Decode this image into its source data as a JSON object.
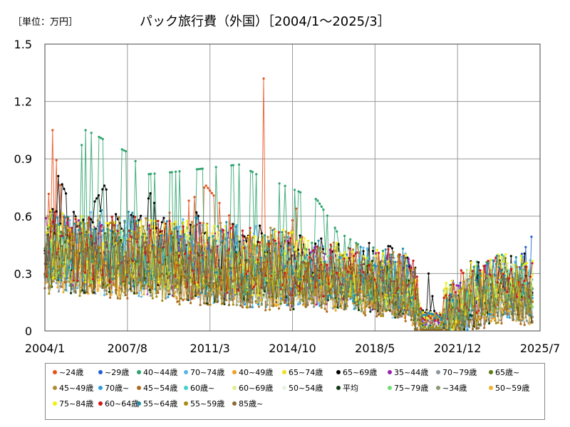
{
  "chart_data": {
    "type": "line",
    "title": "パック旅行費（外国）［2004/1～2025/3］",
    "unit_label": "［単位：万円］",
    "ylim": [
      0,
      1.5
    ],
    "yticks": [
      "0",
      "0.3",
      "0.6",
      "0.9",
      "1.2",
      "1.5"
    ],
    "ytick_values": [
      0,
      0.3,
      0.6,
      0.9,
      1.2,
      1.5
    ],
    "x_range": [
      "2004/1",
      "2025/7"
    ],
    "xticks": [
      "2004/1",
      "2007/8",
      "2011/3",
      "2014/10",
      "2018/5",
      "2021/12",
      "2025/7"
    ],
    "xtick_values": [
      2004.0,
      2007.583,
      2011.167,
      2014.75,
      2018.333,
      2021.917,
      2025.5
    ],
    "grid": true,
    "legend_position": "bottom",
    "series": [
      {
        "name": "~24歳",
        "color": "#e8511a"
      },
      {
        "name": "~29歳",
        "color": "#1f5fd6"
      },
      {
        "name": "40~44歳",
        "color": "#2ca36b"
      },
      {
        "name": "70~74歳",
        "color": "#5ab4e8"
      },
      {
        "name": "40~49歳",
        "color": "#f0a020"
      },
      {
        "name": "65~74歳",
        "color": "#f0e020"
      },
      {
        "name": "65~69歳",
        "color": "#000000"
      },
      {
        "name": "35~44歳",
        "color": "#9b1fb0"
      },
      {
        "name": "70~79歳",
        "color": "#8a949c"
      },
      {
        "name": "65歳~",
        "color": "#5a7a10"
      },
      {
        "name": "45~49歳",
        "color": "#b08a30"
      },
      {
        "name": "70歳~",
        "color": "#2aa0e0"
      },
      {
        "name": "45~54歳",
        "color": "#b06a20"
      },
      {
        "name": "60歳~",
        "color": "#40d0d0"
      },
      {
        "name": "60~69歳",
        "color": "#e0f090"
      },
      {
        "name": "50~54歳",
        "color": "#e8f4e0"
      },
      {
        "name": "平均",
        "color": "#103a10"
      },
      {
        "name": "75~79歳",
        "color": "#70e070"
      },
      {
        "name": "~34歳",
        "color": "#8a9a70"
      },
      {
        "name": "50~59歳",
        "color": "#f0b030"
      },
      {
        "name": "75~84歳",
        "color": "#f0f010"
      },
      {
        "name": "60~64歳",
        "color": "#d01818"
      },
      {
        "name": "55~64歳",
        "color": "#2090a8"
      },
      {
        "name": "55~59歳",
        "color": "#a88a10"
      },
      {
        "name": "85歳~",
        "color": "#8a6a30"
      }
    ],
    "key_points": [
      {
        "series": "65~69歳",
        "points": [
          [
            2004.0,
            0.42
          ],
          [
            2004.6,
            0.81
          ],
          [
            2005.5,
            0.55
          ],
          [
            2006.6,
            0.76
          ],
          [
            2007.6,
            0.45
          ],
          [
            2008.6,
            0.72
          ],
          [
            2009.6,
            0.38
          ],
          [
            2010.6,
            0.62
          ],
          [
            2011.6,
            0.32
          ],
          [
            2012.6,
            0.5
          ],
          [
            2013.6,
            0.41
          ],
          [
            2014.6,
            0.46
          ],
          [
            2015.6,
            0.37
          ],
          [
            2016.6,
            0.33
          ],
          [
            2017.6,
            0.3
          ],
          [
            2018.6,
            0.31
          ],
          [
            2019.6,
            0.33
          ],
          [
            2020.2,
            0.05
          ],
          [
            2020.7,
            0.3
          ],
          [
            2021.0,
            0.02
          ],
          [
            2022.0,
            0.1
          ],
          [
            2023.0,
            0.25
          ],
          [
            2024.5,
            0.22
          ],
          [
            2025.2,
            0.2
          ]
        ]
      },
      {
        "series": "~24歳",
        "points": [
          [
            2004.0,
            0.3
          ],
          [
            2004.3,
            1.05
          ],
          [
            2005.0,
            0.5
          ],
          [
            2007.0,
            0.35
          ],
          [
            2008.5,
            0.55
          ],
          [
            2010.5,
            0.7
          ],
          [
            2011.0,
            0.76
          ],
          [
            2013.3,
            0.4
          ],
          [
            2013.5,
            1.32
          ],
          [
            2013.8,
            0.2
          ],
          [
            2014.9,
            0.64
          ],
          [
            2015.5,
            0.3
          ],
          [
            2020.5,
            0.02
          ],
          [
            2023.0,
            0.2
          ],
          [
            2025.2,
            0.15
          ]
        ]
      },
      {
        "series": "40~44歳",
        "points": [
          [
            2004.0,
            0.35
          ],
          [
            2005.8,
            1.05
          ],
          [
            2007.5,
            0.94
          ],
          [
            2008.5,
            0.82
          ],
          [
            2009.5,
            0.83
          ],
          [
            2012.4,
            0.87
          ],
          [
            2013.2,
            0.82
          ],
          [
            2015.8,
            0.69
          ],
          [
            2016.7,
            0.52
          ],
          [
            2019.0,
            0.35
          ],
          [
            2020.5,
            0.02
          ],
          [
            2022.5,
            0.2
          ],
          [
            2024.2,
            0.3
          ],
          [
            2025.2,
            0.22
          ]
        ]
      },
      {
        "series": "~29歳",
        "points": [
          [
            2004.0,
            0.25
          ],
          [
            2006.0,
            0.45
          ],
          [
            2010.0,
            0.35
          ],
          [
            2014.0,
            0.3
          ],
          [
            2018.0,
            0.25
          ],
          [
            2020.5,
            0.02
          ],
          [
            2022.0,
            0.1
          ],
          [
            2024.0,
            0.25
          ],
          [
            2025.3,
            0.53
          ]
        ]
      }
    ]
  }
}
